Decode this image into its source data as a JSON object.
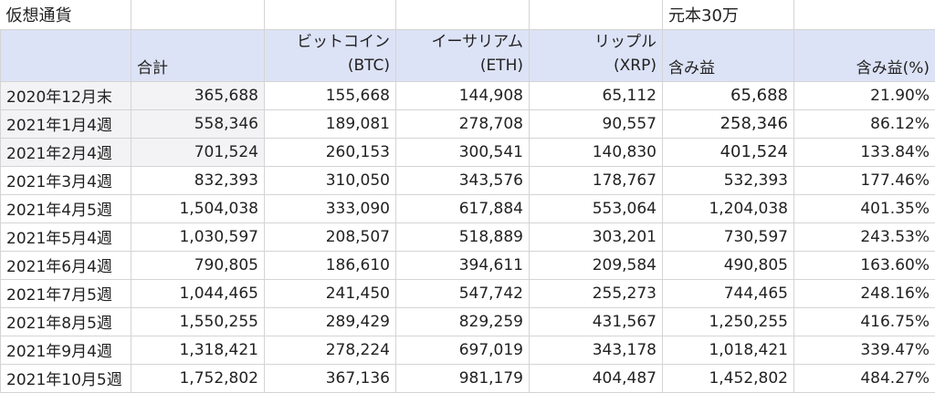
{
  "sheet": {
    "title": "仮想通貨",
    "principal_note": "元本30万",
    "headers": {
      "total": "合計",
      "btc": "ビットコイン",
      "btc_sub": "(BTC)",
      "eth": "イーサリアム",
      "eth_sub": "(ETH)",
      "xrp": "リップル",
      "xrp_sub": "(XRP)",
      "profit": "含み益",
      "profit_pct": "含み益(%)"
    },
    "rows": [
      {
        "label": "2020年12月末",
        "total": "365,688",
        "btc": "155,668",
        "eth": "144,908",
        "xrp": "65,112",
        "profit": "65,688",
        "pct": "21.90%"
      },
      {
        "label": "2021年1月4週",
        "total": "558,346",
        "btc": "189,081",
        "eth": "278,708",
        "xrp": "90,557",
        "profit": "258,346",
        "pct": "86.12%"
      },
      {
        "label": "2021年2月4週",
        "total": "701,524",
        "btc": "260,153",
        "eth": "300,541",
        "xrp": "140,830",
        "profit": "401,524",
        "pct": "133.84%"
      },
      {
        "label": "2021年3月4週",
        "total": "832,393",
        "btc": "310,050",
        "eth": "343,576",
        "xrp": "178,767",
        "profit": "532,393",
        "pct": "177.46%"
      },
      {
        "label": "2021年4月5週",
        "total": "1,504,038",
        "btc": "333,090",
        "eth": "617,884",
        "xrp": "553,064",
        "profit": "1,204,038",
        "pct": "401.35%"
      },
      {
        "label": "2021年5月4週",
        "total": "1,030,597",
        "btc": "208,507",
        "eth": "518,889",
        "xrp": "303,201",
        "profit": "730,597",
        "pct": "243.53%"
      },
      {
        "label": "2021年6月4週",
        "total": "790,805",
        "btc": "186,610",
        "eth": "394,611",
        "xrp": "209,584",
        "profit": "490,805",
        "pct": "163.60%"
      },
      {
        "label": "2021年7月5週",
        "total": "1,044,465",
        "btc": "241,450",
        "eth": "547,742",
        "xrp": "255,273",
        "profit": "744,465",
        "pct": "248.16%"
      },
      {
        "label": "2021年8月5週",
        "total": "1,550,255",
        "btc": "289,429",
        "eth": "829,259",
        "xrp": "431,567",
        "profit": "1,250,255",
        "pct": "416.75%"
      },
      {
        "label": "2021年9月4週",
        "total": "1,318,421",
        "btc": "278,224",
        "eth": "697,019",
        "xrp": "343,178",
        "profit": "1,018,421",
        "pct": "339.47%"
      },
      {
        "label": "2021年10月5週",
        "total": "1,752,802",
        "btc": "367,136",
        "eth": "981,179",
        "xrp": "404,487",
        "profit": "1,452,802",
        "pct": "484.27%"
      }
    ]
  }
}
